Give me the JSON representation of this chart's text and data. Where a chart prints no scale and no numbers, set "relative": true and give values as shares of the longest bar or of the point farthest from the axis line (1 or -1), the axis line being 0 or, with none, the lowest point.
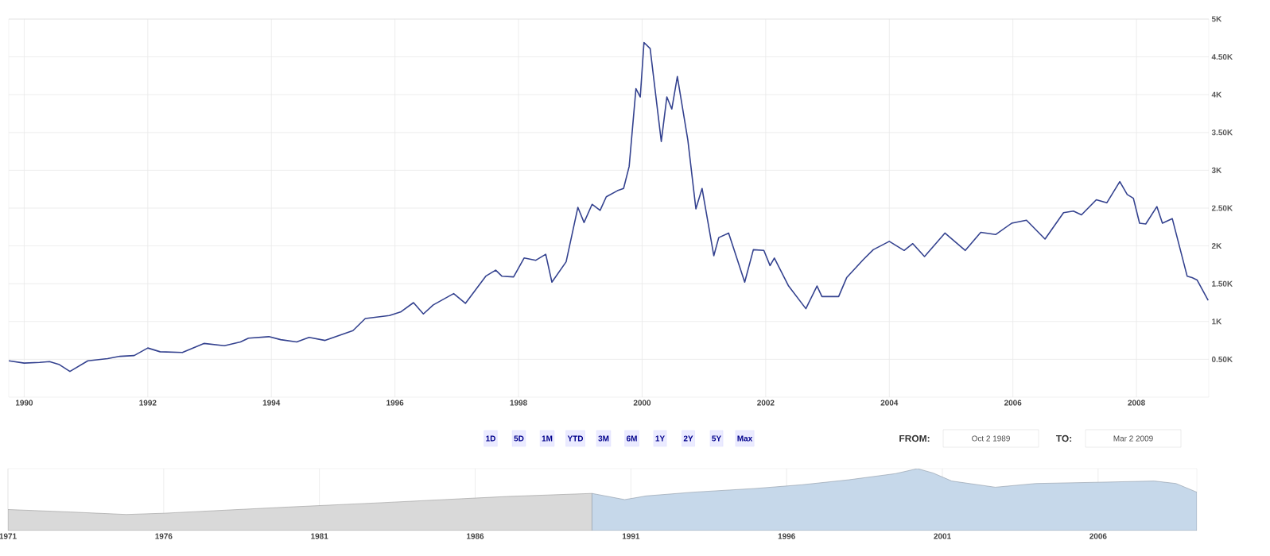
{
  "chart_data": [
    {
      "type": "line",
      "xlim": [
        1989.75,
        2009.17
      ],
      "ylim": [
        0,
        5000
      ],
      "xticks": [
        1990,
        1992,
        1994,
        1996,
        1998,
        2000,
        2002,
        2004,
        2006,
        2008
      ],
      "yticks": [
        {
          "value": 500,
          "label": "0.50K"
        },
        {
          "value": 1000,
          "label": "1K"
        },
        {
          "value": 1500,
          "label": "1.50K"
        },
        {
          "value": 2000,
          "label": "2K"
        },
        {
          "value": 2500,
          "label": "2.50K"
        },
        {
          "value": 3000,
          "label": "3K"
        },
        {
          "value": 3500,
          "label": "3.50K"
        },
        {
          "value": 4000,
          "label": "4K"
        },
        {
          "value": 4500,
          "label": "4.50K"
        },
        {
          "value": 5000,
          "label": "5K"
        }
      ],
      "grid": true,
      "x": [
        1989.75,
        1990.0,
        1990.25,
        1990.41,
        1990.57,
        1990.74,
        1991.03,
        1991.35,
        1991.55,
        1991.78,
        1992.0,
        1992.2,
        1992.56,
        1992.91,
        1993.24,
        1993.5,
        1993.63,
        1993.96,
        1994.15,
        1994.41,
        1994.61,
        1994.87,
        1995.32,
        1995.52,
        1995.91,
        1996.1,
        1996.3,
        1996.46,
        1996.62,
        1996.95,
        1997.14,
        1997.47,
        1997.63,
        1997.73,
        1997.92,
        1998.09,
        1998.28,
        1998.44,
        1998.54,
        1998.77,
        1998.96,
        1999.06,
        1999.19,
        1999.32,
        1999.42,
        1999.6,
        1999.7,
        1999.79,
        1999.9,
        1999.97,
        2000.03,
        2000.13,
        2000.31,
        2000.4,
        2000.48,
        2000.57,
        2000.74,
        2000.87,
        2000.97,
        2001.16,
        2001.24,
        2001.4,
        2001.66,
        2001.8,
        2001.97,
        2002.07,
        2002.14,
        2002.37,
        2002.65,
        2002.83,
        2002.91,
        2003.18,
        2003.31,
        2003.58,
        2003.74,
        2004.0,
        2004.24,
        2004.38,
        2004.57,
        2004.9,
        2005.23,
        2005.48,
        2005.72,
        2005.98,
        2006.22,
        2006.52,
        2006.82,
        2006.98,
        2007.11,
        2007.35,
        2007.52,
        2007.73,
        2007.85,
        2007.95,
        2008.05,
        2008.15,
        2008.33,
        2008.42,
        2008.58,
        2008.82,
        2008.9,
        2008.98,
        2009.16
      ],
      "series": [
        {
          "color": "#34428f",
          "values": [
            480,
            450,
            460,
            470,
            430,
            340,
            480,
            510,
            540,
            550,
            650,
            600,
            590,
            710,
            680,
            730,
            780,
            800,
            760,
            730,
            790,
            750,
            880,
            1040,
            1080,
            1130,
            1250,
            1100,
            1220,
            1370,
            1240,
            1600,
            1680,
            1600,
            1590,
            1840,
            1810,
            1890,
            1520,
            1790,
            2510,
            2310,
            2550,
            2470,
            2650,
            2730,
            2760,
            3050,
            4080,
            3970,
            4690,
            4610,
            3380,
            3970,
            3810,
            4240,
            3400,
            2490,
            2760,
            1870,
            2110,
            2170,
            1520,
            1950,
            1940,
            1740,
            1840,
            1470,
            1170,
            1470,
            1330,
            1330,
            1580,
            1820,
            1950,
            2060,
            1940,
            2030,
            1860,
            2170,
            1940,
            2180,
            2150,
            2300,
            2340,
            2090,
            2440,
            2460,
            2410,
            2610,
            2570,
            2850,
            2680,
            2630,
            2300,
            2290,
            2520,
            2300,
            2360,
            1600,
            1580,
            1550,
            1280
          ]
        }
      ],
      "annotations": [
        "1D",
        "5D",
        "1M",
        "YTD",
        "3M",
        "6M",
        "1Y",
        "2Y",
        "5Y",
        "Max",
        "FROM:",
        "Oct 2 1989",
        "TO:",
        "Mar 2 2009"
      ]
    },
    {
      "type": "area",
      "relative": true,
      "xlim": [
        1971,
        2009.17
      ],
      "grid": "x",
      "xticks": [
        1971,
        1976,
        1981,
        1986,
        1991,
        1996,
        2001,
        2006
      ],
      "series": [
        {
          "color": "#d9d9d9",
          "x": [
            1971,
            1973,
            1974.8,
            1976,
            1978,
            1980,
            1983,
            1985,
            1987,
            1989.75
          ],
          "values": [
            0.34,
            0.3,
            0.26,
            0.28,
            0.33,
            0.38,
            0.45,
            0.5,
            0.55,
            0.6
          ]
        },
        {
          "color": "#c6d8ea",
          "x": [
            1989.75,
            1990.8,
            1991.5,
            1993,
            1995,
            1996.5,
            1998,
            1999.5,
            2000.2,
            2000.7,
            2001.3,
            2002.7,
            2004,
            2006,
            2007.8,
            2008.5,
            2009.17
          ],
          "values": [
            0.6,
            0.5,
            0.56,
            0.62,
            0.68,
            0.74,
            0.82,
            0.92,
            1.0,
            0.93,
            0.8,
            0.7,
            0.76,
            0.78,
            0.8,
            0.76,
            0.62
          ]
        }
      ]
    }
  ]
}
